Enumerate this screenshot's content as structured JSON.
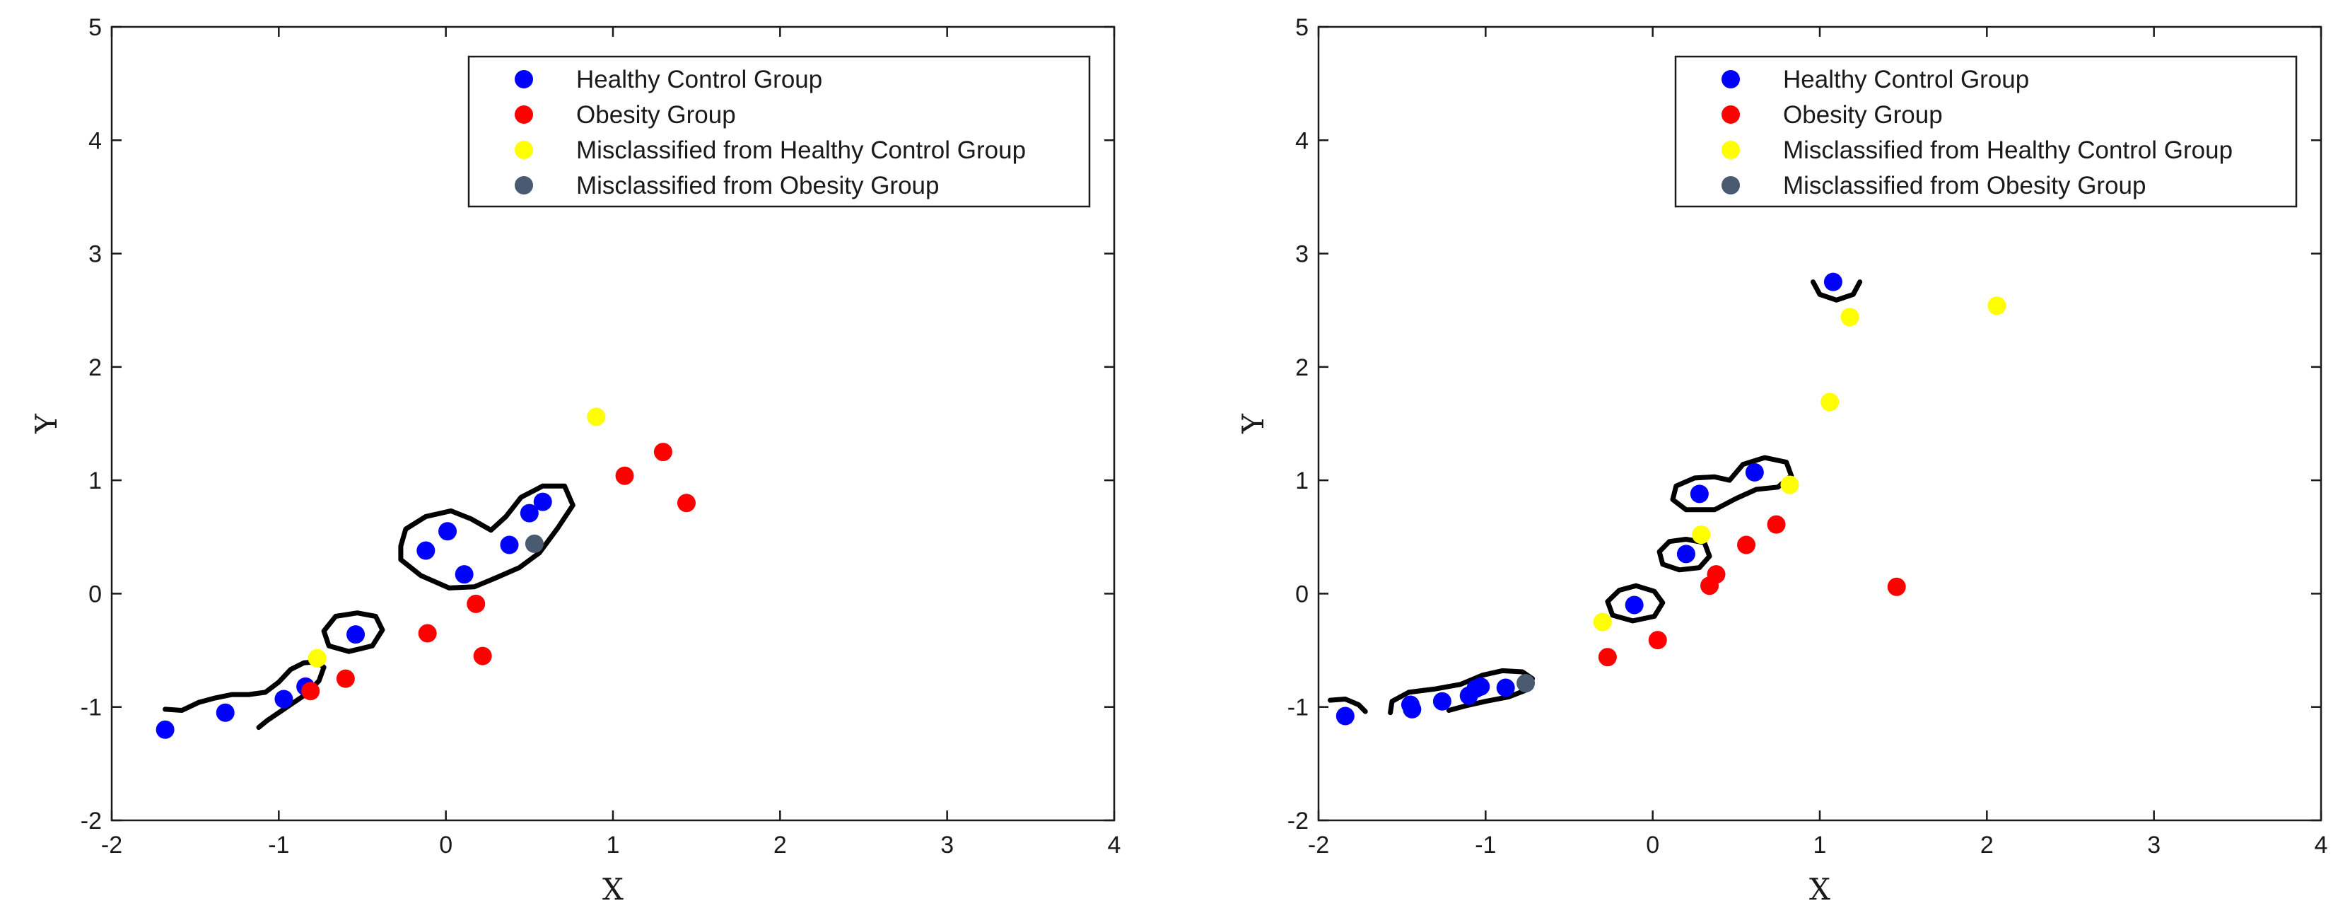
{
  "colors": {
    "healthy": "#0000ff",
    "obesity": "#ff0000",
    "mis_healthy": "#ffff00",
    "mis_obesity": "#4a5a70"
  },
  "chart_data": [
    {
      "type": "scatter",
      "xlabel": "X",
      "ylabel": "Y",
      "xlim": [
        -2,
        4
      ],
      "ylim": [
        -2,
        5
      ],
      "xticks": [
        "-2",
        "-1",
        "0",
        "1",
        "2",
        "3",
        "4"
      ],
      "yticks": [
        "-2",
        "-1",
        "0",
        "1",
        "2",
        "3",
        "4",
        "5"
      ],
      "grid": false,
      "legend_position": "top-right",
      "series": [
        {
          "name": "Healthy Control Group",
          "color": "healthy",
          "points": [
            [
              -1.68,
              -1.2
            ],
            [
              -1.32,
              -1.05
            ],
            [
              -0.97,
              -0.93
            ],
            [
              -0.84,
              -0.82
            ],
            [
              -0.54,
              -0.36
            ],
            [
              -0.12,
              0.38
            ],
            [
              0.01,
              0.55
            ],
            [
              0.11,
              0.17
            ],
            [
              0.38,
              0.43
            ],
            [
              0.5,
              0.71
            ],
            [
              0.58,
              0.81
            ]
          ]
        },
        {
          "name": "Obesity Group",
          "color": "obesity",
          "points": [
            [
              -0.81,
              -0.86
            ],
            [
              -0.6,
              -0.75
            ],
            [
              -0.11,
              -0.35
            ],
            [
              0.18,
              -0.09
            ],
            [
              0.22,
              -0.55
            ],
            [
              1.07,
              1.04
            ],
            [
              1.3,
              1.25
            ],
            [
              1.44,
              0.8
            ]
          ]
        },
        {
          "name": "Misclassified from Healthy Control Group",
          "color": "mis_healthy",
          "points": [
            [
              -0.77,
              -0.57
            ],
            [
              0.9,
              1.56
            ]
          ]
        },
        {
          "name": "Misclassified from Obesity Group",
          "color": "mis_obesity",
          "points": [
            [
              0.53,
              0.44
            ]
          ]
        }
      ],
      "boundaries": [
        [
          [
            -1.68,
            -1.02
          ],
          [
            -1.58,
            -1.03
          ],
          [
            -1.48,
            -0.96
          ],
          [
            -1.38,
            -0.92
          ],
          [
            -1.28,
            -0.89
          ],
          [
            -1.18,
            -0.89
          ],
          [
            -1.08,
            -0.87
          ],
          [
            -1.0,
            -0.78
          ],
          [
            -0.93,
            -0.67
          ],
          [
            -0.85,
            -0.61
          ],
          [
            -0.77,
            -0.6
          ],
          [
            -0.73,
            -0.65
          ],
          [
            -0.76,
            -0.77
          ],
          [
            -0.84,
            -0.89
          ],
          [
            -0.92,
            -0.97
          ],
          [
            -1.0,
            -1.05
          ],
          [
            -1.07,
            -1.12
          ],
          [
            -1.12,
            -1.18
          ]
        ],
        [
          [
            -0.53,
            -0.17
          ],
          [
            -0.42,
            -0.2
          ],
          [
            -0.38,
            -0.32
          ],
          [
            -0.44,
            -0.46
          ],
          [
            -0.58,
            -0.51
          ],
          [
            -0.7,
            -0.46
          ],
          [
            -0.73,
            -0.33
          ],
          [
            -0.66,
            -0.2
          ],
          [
            -0.53,
            -0.17
          ]
        ],
        [
          [
            -0.27,
            0.42
          ],
          [
            -0.24,
            0.57
          ],
          [
            -0.12,
            0.68
          ],
          [
            0.03,
            0.73
          ],
          [
            0.15,
            0.66
          ],
          [
            0.27,
            0.56
          ],
          [
            0.36,
            0.68
          ],
          [
            0.45,
            0.85
          ],
          [
            0.58,
            0.95
          ],
          [
            0.71,
            0.95
          ],
          [
            0.76,
            0.78
          ],
          [
            0.67,
            0.58
          ],
          [
            0.56,
            0.36
          ],
          [
            0.44,
            0.23
          ],
          [
            0.3,
            0.14
          ],
          [
            0.17,
            0.06
          ],
          [
            0.02,
            0.05
          ],
          [
            -0.15,
            0.16
          ],
          [
            -0.27,
            0.3
          ],
          [
            -0.27,
            0.42
          ]
        ]
      ]
    },
    {
      "type": "scatter",
      "xlabel": "X",
      "ylabel": "Y",
      "xlim": [
        -2,
        4
      ],
      "ylim": [
        -2,
        5
      ],
      "xticks": [
        "-2",
        "-1",
        "0",
        "1",
        "2",
        "3",
        "4"
      ],
      "yticks": [
        "-2",
        "-1",
        "0",
        "1",
        "2",
        "3",
        "4",
        "5"
      ],
      "grid": false,
      "legend_position": "top-right",
      "series": [
        {
          "name": "Healthy Control Group",
          "color": "healthy",
          "points": [
            [
              -1.84,
              -1.08
            ],
            [
              -1.45,
              -0.98
            ],
            [
              -1.44,
              -1.02
            ],
            [
              -1.26,
              -0.95
            ],
            [
              -1.1,
              -0.9
            ],
            [
              -1.06,
              -0.84
            ],
            [
              -1.03,
              -0.82
            ],
            [
              -0.88,
              -0.83
            ],
            [
              -0.11,
              -0.1
            ],
            [
              0.2,
              0.35
            ],
            [
              0.28,
              0.88
            ],
            [
              0.61,
              1.07
            ],
            [
              1.08,
              2.75
            ]
          ]
        },
        {
          "name": "Obesity Group",
          "color": "obesity",
          "points": [
            [
              -0.27,
              -0.56
            ],
            [
              0.03,
              -0.41
            ],
            [
              0.34,
              0.07
            ],
            [
              0.38,
              0.17
            ],
            [
              0.56,
              0.43
            ],
            [
              0.74,
              0.61
            ],
            [
              1.46,
              0.06
            ]
          ]
        },
        {
          "name": "Misclassified from Healthy Control Group",
          "color": "mis_healthy",
          "points": [
            [
              -0.3,
              -0.25
            ],
            [
              0.29,
              0.52
            ],
            [
              0.82,
              0.96
            ],
            [
              1.06,
              1.69
            ],
            [
              1.18,
              2.44
            ],
            [
              2.06,
              2.54
            ]
          ]
        },
        {
          "name": "Misclassified from Obesity Group",
          "color": "mis_obesity",
          "points": [
            [
              -0.76,
              -0.79
            ]
          ]
        }
      ],
      "boundaries": [
        [
          [
            -1.93,
            -0.94
          ],
          [
            -1.84,
            -0.93
          ],
          [
            -1.76,
            -0.98
          ],
          [
            -1.72,
            -1.04
          ]
        ],
        [
          [
            -1.57,
            -1.05
          ],
          [
            -1.56,
            -0.95
          ],
          [
            -1.46,
            -0.87
          ],
          [
            -1.3,
            -0.84
          ],
          [
            -1.15,
            -0.8
          ],
          [
            -1.02,
            -0.72
          ],
          [
            -0.9,
            -0.68
          ],
          [
            -0.78,
            -0.69
          ],
          [
            -0.72,
            -0.75
          ],
          [
            -0.74,
            -0.84
          ],
          [
            -0.86,
            -0.91
          ],
          [
            -1.0,
            -0.95
          ],
          [
            -1.12,
            -0.99
          ],
          [
            -1.22,
            -1.03
          ]
        ],
        [
          [
            -0.1,
            0.07
          ],
          [
            0.01,
            0.02
          ],
          [
            0.06,
            -0.08
          ],
          [
            0.01,
            -0.2
          ],
          [
            -0.12,
            -0.24
          ],
          [
            -0.24,
            -0.19
          ],
          [
            -0.27,
            -0.07
          ],
          [
            -0.2,
            0.03
          ],
          [
            -0.1,
            0.07
          ]
        ],
        [
          [
            0.2,
            0.48
          ],
          [
            0.31,
            0.45
          ],
          [
            0.34,
            0.33
          ],
          [
            0.28,
            0.23
          ],
          [
            0.16,
            0.21
          ],
          [
            0.06,
            0.26
          ],
          [
            0.04,
            0.37
          ],
          [
            0.1,
            0.46
          ],
          [
            0.2,
            0.48
          ]
        ],
        [
          [
            0.25,
            1.02
          ],
          [
            0.37,
            1.03
          ],
          [
            0.46,
            1.0
          ],
          [
            0.54,
            1.14
          ],
          [
            0.67,
            1.2
          ],
          [
            0.8,
            1.16
          ],
          [
            0.83,
            1.04
          ],
          [
            0.75,
            0.94
          ],
          [
            0.62,
            0.92
          ],
          [
            0.5,
            0.84
          ],
          [
            0.37,
            0.74
          ],
          [
            0.2,
            0.74
          ],
          [
            0.12,
            0.83
          ],
          [
            0.14,
            0.95
          ],
          [
            0.25,
            1.02
          ]
        ],
        [
          [
            0.96,
            2.75
          ],
          [
            1.0,
            2.64
          ],
          [
            1.1,
            2.59
          ],
          [
            1.2,
            2.64
          ],
          [
            1.24,
            2.75
          ]
        ]
      ]
    }
  ]
}
